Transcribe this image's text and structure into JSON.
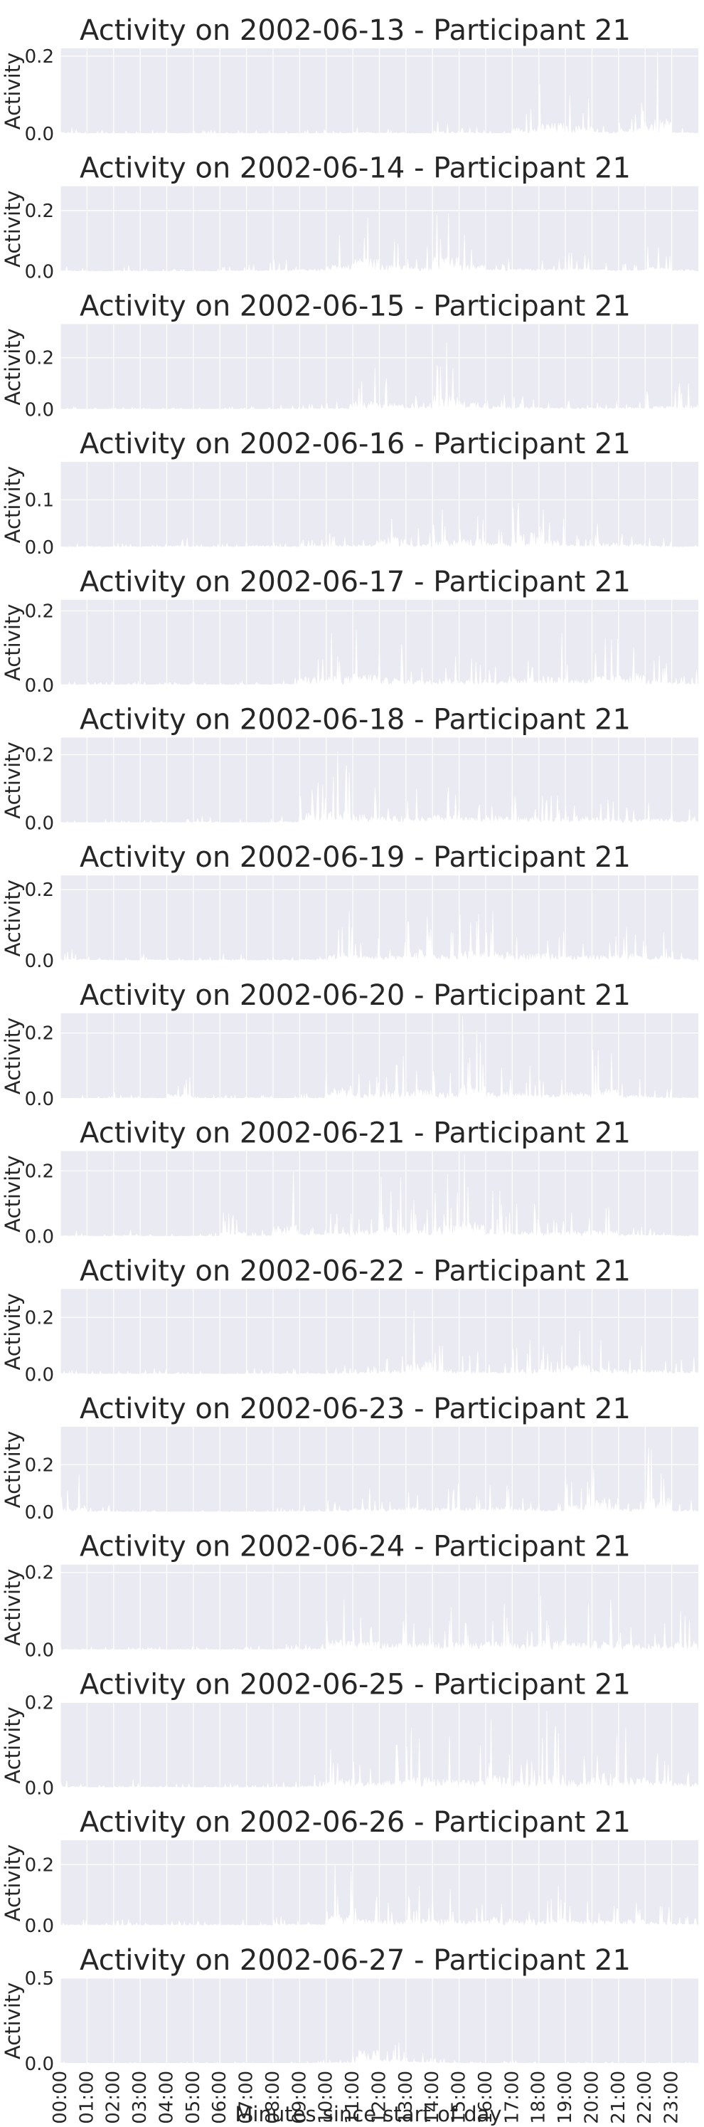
{
  "figure": {
    "xlabel": "Minutes since start of day",
    "background_color": "#eaeaf2",
    "grid_color": "#ffffff",
    "series_color": "#ffffff"
  },
  "chart_data": [
    {
      "type": "area",
      "title": "Activity on 2002-06-13 - Participant 21",
      "ylabel": "Activity",
      "ylim": [
        0,
        0.22
      ],
      "yticks": [
        0.0,
        0.2
      ],
      "ytick_labels": [
        "0.0",
        "0.2"
      ],
      "grid": true,
      "x_ticks": [
        "00:00",
        "01:00",
        "02:00",
        "03:00",
        "04:00",
        "05:00",
        "06:00",
        "07:00",
        "08:00",
        "09:00",
        "10:00",
        "11:00",
        "12:00",
        "13:00",
        "14:00",
        "15:00",
        "16:00",
        "17:00",
        "18:00",
        "19:00",
        "20:00",
        "21:00",
        "22:00",
        "23:00"
      ],
      "hourly_max": [
        0.02,
        0.01,
        0.01,
        0.01,
        0.01,
        0.01,
        0.01,
        0.01,
        0.01,
        0.01,
        0.01,
        0.02,
        0.02,
        0.01,
        0.04,
        0.02,
        0.01,
        0.09,
        0.16,
        0.12,
        0.03,
        0.08,
        0.21,
        0.02
      ]
    },
    {
      "type": "area",
      "title": "Activity on 2002-06-14 - Participant 21",
      "ylabel": "Activity",
      "ylim": [
        0,
        0.28
      ],
      "yticks": [
        0.0,
        0.2
      ],
      "ytick_labels": [
        "0.0",
        "0.2"
      ],
      "grid": true,
      "x_ticks": [
        "00:00",
        "01:00",
        "02:00",
        "03:00",
        "04:00",
        "05:00",
        "06:00",
        "07:00",
        "08:00",
        "09:00",
        "10:00",
        "11:00",
        "12:00",
        "13:00",
        "14:00",
        "15:00",
        "16:00",
        "17:00",
        "18:00",
        "19:00",
        "20:00",
        "21:00",
        "22:00",
        "23:00"
      ],
      "hourly_max": [
        0.02,
        0.01,
        0.02,
        0.01,
        0.01,
        0.01,
        0.02,
        0.03,
        0.04,
        0.05,
        0.12,
        0.24,
        0.12,
        0.08,
        0.27,
        0.12,
        0.04,
        0.05,
        0.05,
        0.08,
        0.04,
        0.03,
        0.08,
        0.04
      ]
    },
    {
      "type": "area",
      "title": "Activity on 2002-06-15 - Participant 21",
      "ylabel": "Activity",
      "ylim": [
        0,
        0.33
      ],
      "yticks": [
        0.0,
        0.2
      ],
      "ytick_labels": [
        "0.0",
        "0.2"
      ],
      "grid": true,
      "x_ticks": [
        "00:00",
        "01:00",
        "02:00",
        "03:00",
        "04:00",
        "05:00",
        "06:00",
        "07:00",
        "08:00",
        "09:00",
        "10:00",
        "11:00",
        "12:00",
        "13:00",
        "14:00",
        "15:00",
        "16:00",
        "17:00",
        "18:00",
        "19:00",
        "20:00",
        "21:00",
        "22:00",
        "23:00"
      ],
      "hourly_max": [
        0.01,
        0.01,
        0.01,
        0.01,
        0.01,
        0.01,
        0.01,
        0.01,
        0.02,
        0.02,
        0.03,
        0.19,
        0.12,
        0.07,
        0.32,
        0.18,
        0.08,
        0.05,
        0.04,
        0.04,
        0.03,
        0.05,
        0.07,
        0.1
      ]
    },
    {
      "type": "area",
      "title": "Activity on 2002-06-16 - Participant 21",
      "ylabel": "Activity",
      "ylim": [
        0,
        0.18
      ],
      "yticks": [
        0.0,
        0.1
      ],
      "ytick_labels": [
        "0.0",
        "0.1"
      ],
      "grid": true,
      "x_ticks": [
        "00:00",
        "01:00",
        "02:00",
        "03:00",
        "04:00",
        "05:00",
        "06:00",
        "07:00",
        "08:00",
        "09:00",
        "10:00",
        "11:00",
        "12:00",
        "13:00",
        "14:00",
        "15:00",
        "16:00",
        "17:00",
        "18:00",
        "19:00",
        "20:00",
        "21:00",
        "22:00",
        "23:00"
      ],
      "hourly_max": [
        0.01,
        0.01,
        0.01,
        0.01,
        0.02,
        0.01,
        0.01,
        0.02,
        0.01,
        0.02,
        0.03,
        0.03,
        0.12,
        0.04,
        0.08,
        0.1,
        0.05,
        0.17,
        0.08,
        0.03,
        0.05,
        0.04,
        0.02,
        0.01
      ]
    },
    {
      "type": "area",
      "title": "Activity on 2002-06-17 - Participant 21",
      "ylabel": "Activity",
      "ylim": [
        0,
        0.23
      ],
      "yticks": [
        0.0,
        0.2
      ],
      "ytick_labels": [
        "0.0",
        "0.2"
      ],
      "grid": true,
      "x_ticks": [
        "00:00",
        "01:00",
        "02:00",
        "03:00",
        "04:00",
        "05:00",
        "06:00",
        "07:00",
        "08:00",
        "09:00",
        "10:00",
        "11:00",
        "12:00",
        "13:00",
        "14:00",
        "15:00",
        "16:00",
        "17:00",
        "18:00",
        "19:00",
        "20:00",
        "21:00",
        "22:00",
        "23:00"
      ],
      "hourly_max": [
        0.01,
        0.01,
        0.01,
        0.01,
        0.01,
        0.01,
        0.01,
        0.01,
        0.02,
        0.13,
        0.14,
        0.18,
        0.11,
        0.08,
        0.1,
        0.1,
        0.06,
        0.12,
        0.14,
        0.1,
        0.15,
        0.19,
        0.08,
        0.04
      ]
    },
    {
      "type": "area",
      "title": "Activity on 2002-06-18 - Participant 21",
      "ylabel": "Activity",
      "ylim": [
        0,
        0.25
      ],
      "yticks": [
        0.0,
        0.2
      ],
      "ytick_labels": [
        "0.0",
        "0.2"
      ],
      "grid": true,
      "x_ticks": [
        "00:00",
        "01:00",
        "02:00",
        "03:00",
        "04:00",
        "05:00",
        "06:00",
        "07:00",
        "08:00",
        "09:00",
        "10:00",
        "11:00",
        "12:00",
        "13:00",
        "14:00",
        "15:00",
        "16:00",
        "17:00",
        "18:00",
        "19:00",
        "20:00",
        "21:00",
        "22:00",
        "23:00"
      ],
      "hourly_max": [
        0.01,
        0.01,
        0.01,
        0.01,
        0.01,
        0.02,
        0.01,
        0.01,
        0.02,
        0.16,
        0.21,
        0.14,
        0.11,
        0.1,
        0.13,
        0.09,
        0.12,
        0.1,
        0.08,
        0.12,
        0.09,
        0.06,
        0.08,
        0.04
      ]
    },
    {
      "type": "area",
      "title": "Activity on 2002-06-19 - Participant 21",
      "ylabel": "Activity",
      "ylim": [
        0,
        0.24
      ],
      "yticks": [
        0.0,
        0.2
      ],
      "ytick_labels": [
        "0.0",
        "0.2"
      ],
      "grid": true,
      "x_ticks": [
        "00:00",
        "01:00",
        "02:00",
        "03:00",
        "04:00",
        "05:00",
        "06:00",
        "07:00",
        "08:00",
        "09:00",
        "10:00",
        "11:00",
        "12:00",
        "13:00",
        "14:00",
        "15:00",
        "16:00",
        "17:00",
        "18:00",
        "19:00",
        "20:00",
        "21:00",
        "22:00",
        "23:00"
      ],
      "hourly_max": [
        0.03,
        0.02,
        0.01,
        0.02,
        0.01,
        0.01,
        0.02,
        0.01,
        0.02,
        0.03,
        0.14,
        0.08,
        0.08,
        0.2,
        0.1,
        0.17,
        0.14,
        0.12,
        0.14,
        0.08,
        0.09,
        0.12,
        0.08,
        0.04
      ]
    },
    {
      "type": "area",
      "title": "Activity on 2002-06-20 - Participant 21",
      "ylabel": "Activity",
      "ylim": [
        0,
        0.26
      ],
      "yticks": [
        0.0,
        0.2
      ],
      "ytick_labels": [
        "0.0",
        "0.2"
      ],
      "grid": true,
      "x_ticks": [
        "00:00",
        "01:00",
        "02:00",
        "03:00",
        "04:00",
        "05:00",
        "06:00",
        "07:00",
        "08:00",
        "09:00",
        "10:00",
        "11:00",
        "12:00",
        "13:00",
        "14:00",
        "15:00",
        "16:00",
        "17:00",
        "18:00",
        "19:00",
        "20:00",
        "21:00",
        "22:00",
        "23:00"
      ],
      "hourly_max": [
        0.01,
        0.01,
        0.02,
        0.01,
        0.08,
        0.01,
        0.01,
        0.02,
        0.01,
        0.02,
        0.22,
        0.09,
        0.13,
        0.15,
        0.1,
        0.25,
        0.12,
        0.1,
        0.08,
        0.12,
        0.18,
        0.06,
        0.04,
        0.02
      ]
    },
    {
      "type": "area",
      "title": "Activity on 2002-06-21 - Participant 21",
      "ylabel": "Activity",
      "ylim": [
        0,
        0.26
      ],
      "yticks": [
        0.0,
        0.2
      ],
      "ytick_labels": [
        "0.0",
        "0.2"
      ],
      "grid": true,
      "x_ticks": [
        "00:00",
        "01:00",
        "02:00",
        "03:00",
        "04:00",
        "05:00",
        "06:00",
        "07:00",
        "08:00",
        "09:00",
        "10:00",
        "11:00",
        "12:00",
        "13:00",
        "14:00",
        "15:00",
        "16:00",
        "17:00",
        "18:00",
        "19:00",
        "20:00",
        "21:00",
        "22:00",
        "23:00"
      ],
      "hourly_max": [
        0.02,
        0.01,
        0.02,
        0.01,
        0.01,
        0.01,
        0.09,
        0.02,
        0.2,
        0.05,
        0.07,
        0.12,
        0.18,
        0.11,
        0.19,
        0.25,
        0.14,
        0.1,
        0.07,
        0.09,
        0.11,
        0.04,
        0.03,
        0.02
      ]
    },
    {
      "type": "area",
      "title": "Activity on 2002-06-22 - Participant 21",
      "ylabel": "Activity",
      "ylim": [
        0,
        0.3
      ],
      "yticks": [
        0.0,
        0.2
      ],
      "ytick_labels": [
        "0.0",
        "0.2"
      ],
      "grid": true,
      "x_ticks": [
        "00:00",
        "01:00",
        "02:00",
        "03:00",
        "04:00",
        "05:00",
        "06:00",
        "07:00",
        "08:00",
        "09:00",
        "10:00",
        "11:00",
        "12:00",
        "13:00",
        "14:00",
        "15:00",
        "16:00",
        "17:00",
        "18:00",
        "19:00",
        "20:00",
        "21:00",
        "22:00",
        "23:00"
      ],
      "hourly_max": [
        0.02,
        0.01,
        0.01,
        0.02,
        0.01,
        0.01,
        0.01,
        0.02,
        0.02,
        0.02,
        0.03,
        0.04,
        0.08,
        0.28,
        0.1,
        0.08,
        0.05,
        0.12,
        0.1,
        0.2,
        0.12,
        0.1,
        0.08,
        0.06
      ]
    },
    {
      "type": "area",
      "title": "Activity on 2002-06-23 - Participant 21",
      "ylabel": "Activity",
      "ylim": [
        0,
        0.36
      ],
      "yticks": [
        0.0,
        0.2
      ],
      "ytick_labels": [
        "0.0",
        "0.2"
      ],
      "grid": true,
      "x_ticks": [
        "00:00",
        "01:00",
        "02:00",
        "03:00",
        "04:00",
        "05:00",
        "06:00",
        "07:00",
        "08:00",
        "09:00",
        "10:00",
        "11:00",
        "12:00",
        "13:00",
        "14:00",
        "15:00",
        "16:00",
        "17:00",
        "18:00",
        "19:00",
        "20:00",
        "21:00",
        "22:00",
        "23:00"
      ],
      "hourly_max": [
        0.16,
        0.03,
        0.01,
        0.01,
        0.01,
        0.01,
        0.02,
        0.01,
        0.02,
        0.03,
        0.05,
        0.1,
        0.08,
        0.12,
        0.12,
        0.1,
        0.14,
        0.09,
        0.06,
        0.18,
        0.35,
        0.08,
        0.34,
        0.05
      ]
    },
    {
      "type": "area",
      "title": "Activity on 2002-06-24 - Participant 21",
      "ylabel": "Activity",
      "ylim": [
        0,
        0.22
      ],
      "yticks": [
        0.0,
        0.2
      ],
      "ytick_labels": [
        "0.0",
        "0.2"
      ],
      "grid": true,
      "x_ticks": [
        "00:00",
        "01:00",
        "02:00",
        "03:00",
        "04:00",
        "05:00",
        "06:00",
        "07:00",
        "08:00",
        "09:00",
        "10:00",
        "11:00",
        "12:00",
        "13:00",
        "14:00",
        "15:00",
        "16:00",
        "17:00",
        "18:00",
        "19:00",
        "20:00",
        "21:00",
        "22:00",
        "23:00"
      ],
      "hourly_max": [
        0.01,
        0.01,
        0.01,
        0.01,
        0.01,
        0.01,
        0.01,
        0.01,
        0.02,
        0.02,
        0.16,
        0.12,
        0.1,
        0.12,
        0.11,
        0.1,
        0.12,
        0.09,
        0.14,
        0.12,
        0.13,
        0.1,
        0.09,
        0.14
      ]
    },
    {
      "type": "area",
      "title": "Activity on 2002-06-25 - Participant 21",
      "ylabel": "Activity",
      "ylim": [
        0,
        0.2
      ],
      "yticks": [
        0.0,
        0.2
      ],
      "ytick_labels": [
        "0.0",
        "0.2"
      ],
      "grid": true,
      "x_ticks": [
        "00:00",
        "01:00",
        "02:00",
        "03:00",
        "04:00",
        "05:00",
        "06:00",
        "07:00",
        "08:00",
        "09:00",
        "10:00",
        "11:00",
        "12:00",
        "13:00",
        "14:00",
        "15:00",
        "16:00",
        "17:00",
        "18:00",
        "19:00",
        "20:00",
        "21:00",
        "22:00",
        "23:00"
      ],
      "hourly_max": [
        0.02,
        0.01,
        0.02,
        0.02,
        0.01,
        0.01,
        0.01,
        0.01,
        0.02,
        0.03,
        0.13,
        0.08,
        0.1,
        0.14,
        0.12,
        0.1,
        0.16,
        0.09,
        0.18,
        0.1,
        0.19,
        0.14,
        0.1,
        0.06
      ]
    },
    {
      "type": "area",
      "title": "Activity on 2002-06-26 - Participant 21",
      "ylabel": "Activity",
      "ylim": [
        0,
        0.28
      ],
      "yticks": [
        0.0,
        0.2
      ],
      "ytick_labels": [
        "0.0",
        "0.2"
      ],
      "grid": true,
      "x_ticks": [
        "00:00",
        "01:00",
        "02:00",
        "03:00",
        "04:00",
        "05:00",
        "06:00",
        "07:00",
        "08:00",
        "09:00",
        "10:00",
        "11:00",
        "12:00",
        "13:00",
        "14:00",
        "15:00",
        "16:00",
        "17:00",
        "18:00",
        "19:00",
        "20:00",
        "21:00",
        "22:00",
        "23:00"
      ],
      "hourly_max": [
        0.02,
        0.02,
        0.02,
        0.02,
        0.02,
        0.02,
        0.02,
        0.01,
        0.03,
        0.03,
        0.27,
        0.12,
        0.1,
        0.13,
        0.12,
        0.1,
        0.16,
        0.12,
        0.13,
        0.1,
        0.1,
        0.12,
        0.08,
        0.04
      ]
    },
    {
      "type": "area",
      "title": "Activity on 2002-06-27 - Participant 21",
      "ylabel": "Activity",
      "ylim": [
        0,
        0.5
      ],
      "yticks": [
        0.0,
        0.5
      ],
      "ytick_labels": [
        "0.0",
        "0.5"
      ],
      "grid": true,
      "x_ticks": [
        "00:00",
        "01:00",
        "02:00",
        "03:00",
        "04:00",
        "05:00",
        "06:00",
        "07:00",
        "08:00",
        "09:00",
        "10:00",
        "11:00",
        "12:00",
        "13:00",
        "14:00",
        "15:00",
        "16:00",
        "17:00",
        "18:00",
        "19:00",
        "20:00",
        "21:00",
        "22:00",
        "23:00"
      ],
      "hourly_max": [
        0.01,
        0.01,
        0.01,
        0.01,
        0.01,
        0.01,
        0.01,
        0.01,
        0.01,
        0.02,
        0.04,
        0.46,
        0.15,
        0.06,
        0.03,
        0.02,
        0.02,
        0.02,
        0.01,
        0.01,
        0.01,
        0.01,
        0.01,
        0.01
      ]
    }
  ]
}
